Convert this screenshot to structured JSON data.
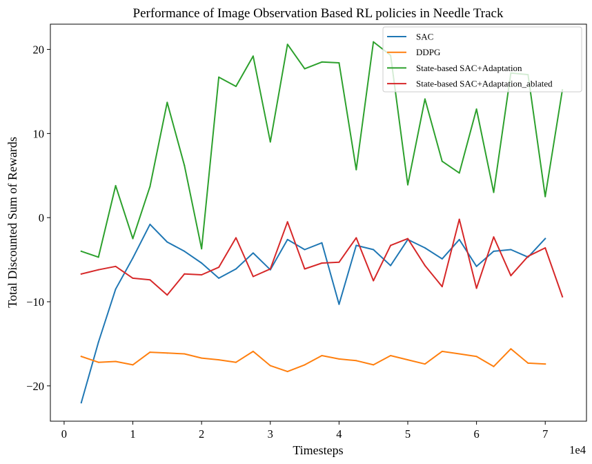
{
  "chart_data": {
    "type": "line",
    "title": "Performance of Image Observation Based RL policies in Needle Track",
    "xlabel": "Timesteps",
    "ylabel": "Total Discounted Sum of Rewards",
    "x_offset_text": "1e4",
    "xlim": [
      -0.2,
      7.6
    ],
    "ylim": [
      -24.2,
      23.0
    ],
    "xticks": [
      0,
      1,
      2,
      3,
      4,
      5,
      6,
      7
    ],
    "yticks": [
      -20,
      -10,
      0,
      10,
      20
    ],
    "xtick_labels": [
      "0",
      "1",
      "2",
      "3",
      "4",
      "5",
      "6",
      "7"
    ],
    "ytick_labels": [
      "−20",
      "−10",
      "0",
      "10",
      "20"
    ],
    "grid": false,
    "legend_position": "top-right",
    "series": [
      {
        "name": "SAC",
        "color": "#1f77b4",
        "x": [
          0.25,
          0.5,
          0.75,
          1.0,
          1.25,
          1.5,
          1.75,
          2.0,
          2.25,
          2.5,
          2.75,
          3.0,
          3.25,
          3.5,
          3.75,
          4.0,
          4.25,
          4.5,
          4.75,
          5.0,
          5.25,
          5.5,
          5.75,
          6.0,
          6.25,
          6.5,
          6.75,
          7.0
        ],
        "values": [
          -22.0,
          -14.8,
          -8.5,
          -4.8,
          -0.8,
          -2.9,
          -4.0,
          -5.4,
          -7.2,
          -6.1,
          -4.2,
          -6.2,
          -2.6,
          -3.8,
          -3.0,
          -10.3,
          -3.3,
          -3.8,
          -5.7,
          -2.6,
          -3.6,
          -4.9,
          -2.6,
          -5.8,
          -4.0,
          -3.8,
          -4.7,
          -2.5
        ]
      },
      {
        "name": "DDPG",
        "color": "#ff7f0e",
        "x": [
          0.25,
          0.5,
          0.75,
          1.0,
          1.25,
          1.5,
          1.75,
          2.0,
          2.25,
          2.5,
          2.75,
          3.0,
          3.25,
          3.5,
          3.75,
          4.0,
          4.25,
          4.5,
          4.75,
          5.0,
          5.25,
          5.5,
          5.75,
          6.0,
          6.25,
          6.5,
          6.75,
          7.0
        ],
        "values": [
          -16.5,
          -17.2,
          -17.1,
          -17.5,
          -16.0,
          -16.1,
          -16.2,
          -16.7,
          -16.9,
          -17.2,
          -15.9,
          -17.6,
          -18.3,
          -17.5,
          -16.4,
          -16.8,
          -17.0,
          -17.5,
          -16.4,
          -16.9,
          -17.4,
          -15.9,
          -16.2,
          -16.5,
          -17.7,
          -15.6,
          -17.3,
          -17.4
        ]
      },
      {
        "name": "State-based SAC+Adaptation",
        "color": "#2ca02c",
        "x": [
          0.25,
          0.5,
          0.75,
          1.0,
          1.25,
          1.5,
          1.75,
          2.0,
          2.25,
          2.5,
          2.75,
          3.0,
          3.25,
          3.5,
          3.75,
          4.0,
          4.25,
          4.5,
          4.75,
          5.0,
          5.25,
          5.5,
          5.75,
          6.0,
          6.25,
          6.5,
          6.75,
          7.0,
          7.25
        ],
        "values": [
          -4.0,
          -4.7,
          3.8,
          -2.5,
          3.7,
          13.7,
          6.2,
          -3.7,
          16.7,
          15.6,
          19.2,
          9.0,
          20.6,
          17.7,
          18.5,
          18.4,
          5.7,
          20.9,
          19.3,
          3.9,
          14.1,
          6.7,
          5.3,
          12.9,
          3.0,
          17.2,
          17.0,
          2.5,
          15.2
        ]
      },
      {
        "name": "State-based SAC+Adaptation_ablated",
        "color": "#d62728",
        "x": [
          0.25,
          0.5,
          0.75,
          1.0,
          1.25,
          1.5,
          1.75,
          2.0,
          2.25,
          2.5,
          2.75,
          3.0,
          3.25,
          3.5,
          3.75,
          4.0,
          4.25,
          4.5,
          4.75,
          5.0,
          5.25,
          5.5,
          5.75,
          6.0,
          6.25,
          6.5,
          6.75,
          7.0,
          7.25
        ],
        "values": [
          -6.7,
          -6.2,
          -5.8,
          -7.2,
          -7.4,
          -9.2,
          -6.7,
          -6.8,
          -5.9,
          -2.4,
          -7.0,
          -6.1,
          -0.5,
          -6.1,
          -5.4,
          -5.3,
          -2.4,
          -7.5,
          -3.3,
          -2.5,
          -5.7,
          -8.2,
          -0.2,
          -8.4,
          -2.3,
          -6.9,
          -4.6,
          -3.6,
          -9.4
        ]
      }
    ]
  }
}
